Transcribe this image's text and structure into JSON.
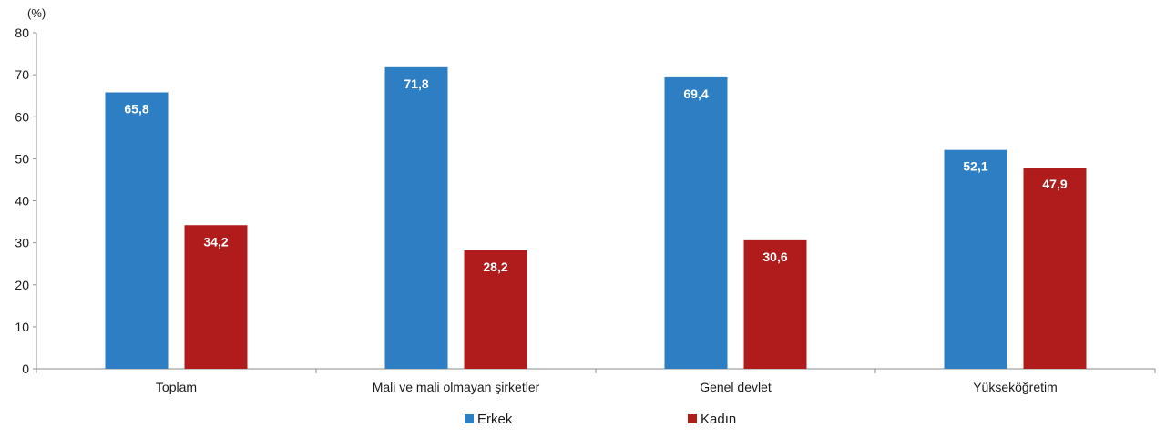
{
  "chart_data": {
    "type": "bar",
    "unit_label": "(%)",
    "categories": [
      "Toplam",
      "Mali ve mali olmayan şirketler",
      "Genel devlet",
      "Yükseköğretim"
    ],
    "series": [
      {
        "name": "Erkek",
        "color": "#2e7ec4",
        "values": [
          65.8,
          71.8,
          69.4,
          52.1
        ],
        "labels": [
          "65,8",
          "71,8",
          "69,4",
          "52,1"
        ]
      },
      {
        "name": "Kadın",
        "color": "#b01c1c",
        "values": [
          34.2,
          28.2,
          30.6,
          47.9
        ],
        "labels": [
          "34,2",
          "28,2",
          "30,6",
          "47,9"
        ]
      }
    ],
    "ylim": [
      0,
      80
    ],
    "yticks": [
      "0",
      "10",
      "20",
      "30",
      "40",
      "50",
      "60",
      "70",
      "80"
    ],
    "grid": false,
    "legend_position": "bottom-center",
    "xlabel": "",
    "ylabel": ""
  }
}
